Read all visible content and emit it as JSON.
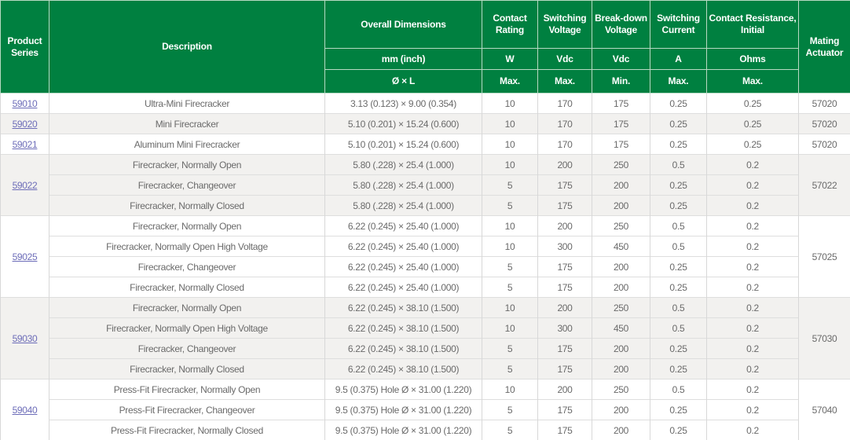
{
  "headers": {
    "product_series": "Product Series",
    "description": "Description",
    "overall_dimensions": "Overall Dimensions",
    "dimensions_unit": "mm (inch)",
    "dimensions_sub": "Ø × L",
    "contact_rating": "Contact Rating",
    "switching_voltage": "Switching Voltage",
    "breakdown_voltage": "Break-down Voltage",
    "switching_current": "Switching Current",
    "contact_resistance": "Contact Resistance, Initial",
    "mating_actuator": "Mating Actuator",
    "units": [
      "W",
      "Vdc",
      "Vdc",
      "A",
      "Ohms"
    ],
    "limits": [
      "Max.",
      "Max.",
      "Min.",
      "Max.",
      "Max."
    ]
  },
  "groups": [
    {
      "series": "59010",
      "actuator": "57020",
      "shaded": false,
      "rows": [
        [
          "Ultra-Mini Firecracker",
          "3.13 (0.123) × 9.00 (0.354)",
          "10",
          "170",
          "175",
          "0.25",
          "0.25"
        ]
      ]
    },
    {
      "series": "59020",
      "actuator": "57020",
      "shaded": true,
      "rows": [
        [
          "Mini Firecracker",
          "5.10 (0.201) × 15.24 (0.600)",
          "10",
          "170",
          "175",
          "0.25",
          "0.25"
        ]
      ]
    },
    {
      "series": "59021",
      "actuator": "57020",
      "shaded": false,
      "rows": [
        [
          "Aluminum Mini Firecracker",
          "5.10 (0.201) × 15.24 (0.600)",
          "10",
          "170",
          "175",
          "0.25",
          "0.25"
        ]
      ]
    },
    {
      "series": "59022",
      "actuator": "57022",
      "shaded": true,
      "rows": [
        [
          "Firecracker, Normally Open",
          "5.80 (.228) × 25.4 (1.000)",
          "10",
          "200",
          "250",
          "0.5",
          "0.2"
        ],
        [
          "Firecracker, Changeover",
          "5.80 (.228) × 25.4 (1.000)",
          "5",
          "175",
          "200",
          "0.25",
          "0.2"
        ],
        [
          "Firecracker, Normally Closed",
          "5.80 (.228) × 25.4 (1.000)",
          "5",
          "175",
          "200",
          "0.25",
          "0.2"
        ]
      ]
    },
    {
      "series": "59025",
      "actuator": "57025",
      "shaded": false,
      "rows": [
        [
          "Firecracker, Normally Open",
          "6.22 (0.245) × 25.40 (1.000)",
          "10",
          "200",
          "250",
          "0.5",
          "0.2"
        ],
        [
          "Firecracker, Normally Open High Voltage",
          "6.22 (0.245) × 25.40 (1.000)",
          "10",
          "300",
          "450",
          "0.5",
          "0.2"
        ],
        [
          "Firecracker, Changeover",
          "6.22 (0.245) × 25.40 (1.000)",
          "5",
          "175",
          "200",
          "0.25",
          "0.2"
        ],
        [
          "Firecracker, Normally Closed",
          "6.22 (0.245) × 25.40 (1.000)",
          "5",
          "175",
          "200",
          "0.25",
          "0.2"
        ]
      ]
    },
    {
      "series": "59030",
      "actuator": "57030",
      "shaded": true,
      "rows": [
        [
          "Firecracker, Normally Open",
          "6.22 (0.245) × 38.10 (1.500)",
          "10",
          "200",
          "250",
          "0.5",
          "0.2"
        ],
        [
          "Firecracker, Normally Open High Voltage",
          "6.22 (0.245) × 38.10 (1.500)",
          "10",
          "300",
          "450",
          "0.5",
          "0.2"
        ],
        [
          "Firecracker, Changeover",
          "6.22 (0.245) × 38.10 (1.500)",
          "5",
          "175",
          "200",
          "0.25",
          "0.2"
        ],
        [
          "Firecracker, Normally Closed",
          "6.22 (0.245) × 38.10 (1.500)",
          "5",
          "175",
          "200",
          "0.25",
          "0.2"
        ]
      ]
    },
    {
      "series": "59040",
      "actuator": "57040",
      "shaded": false,
      "rows": [
        [
          "Press-Fit Firecracker, Normally Open",
          "9.5 (0.375) Hole Ø × 31.00 (1.220)",
          "10",
          "200",
          "250",
          "0.5",
          "0.2"
        ],
        [
          "Press-Fit Firecracker, Changeover",
          "9.5 (0.375) Hole Ø × 31.00 (1.220)",
          "5",
          "175",
          "200",
          "0.25",
          "0.2"
        ],
        [
          "Press-Fit Firecracker, Normally Closed",
          "9.5 (0.375) Hole Ø × 31.00 (1.220)",
          "5",
          "175",
          "200",
          "0.25",
          "0.2"
        ]
      ]
    }
  ],
  "colors": {
    "header_bg": "#008040",
    "shaded_row": "#f2f1ef",
    "link": "#6c6cb8"
  }
}
